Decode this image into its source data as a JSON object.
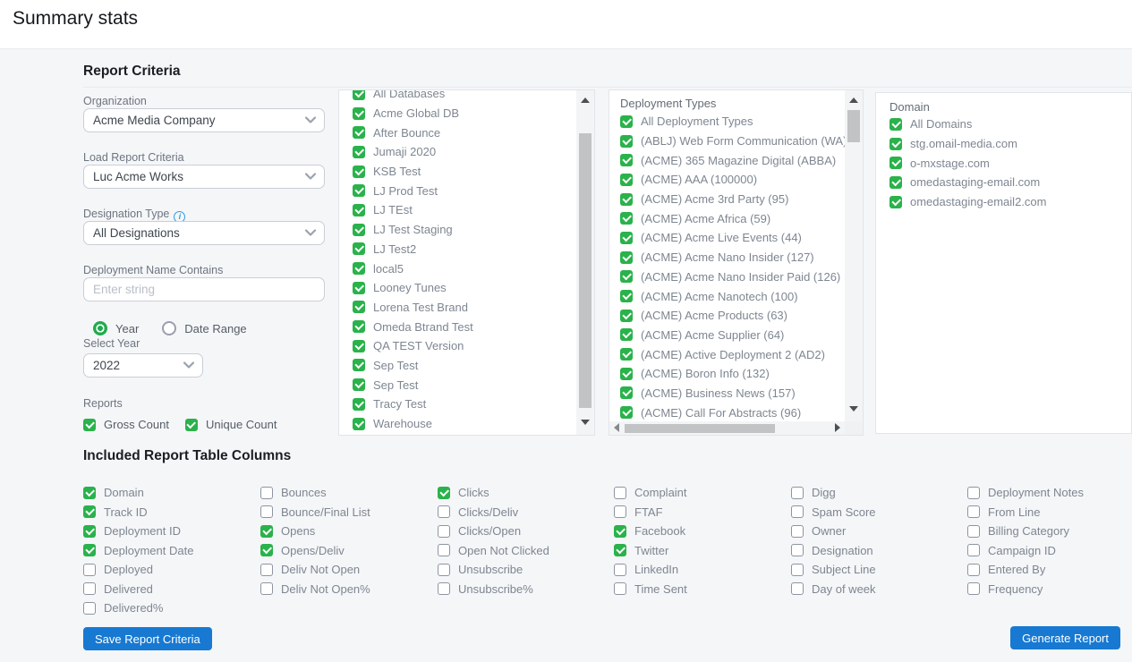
{
  "page_title": "Summary stats",
  "report_criteria": {
    "heading": "Report Criteria",
    "fields": {
      "organization": {
        "label": "Organization",
        "value": "Acme Media Company"
      },
      "load_report_criteria": {
        "label": "Load Report Criteria",
        "value": "Luc Acme Works"
      },
      "designation_type": {
        "label": "Designation Type",
        "value": "All Designations",
        "info_icon": "i"
      },
      "deployment_name_contains": {
        "label": "Deployment Name Contains",
        "placeholder": "Enter string"
      },
      "date_mode": {
        "options": [
          {
            "label": "Year",
            "selected": true
          },
          {
            "label": "Date Range",
            "selected": false
          }
        ]
      },
      "select_year": {
        "label": "Select Year",
        "value": "2022"
      },
      "reports": {
        "label": "Reports",
        "options": [
          {
            "label": "Gross Count",
            "checked": true
          },
          {
            "label": "Unique Count",
            "checked": true
          }
        ]
      }
    }
  },
  "databases": {
    "items": [
      {
        "label": "All Databases",
        "checked": true
      },
      {
        "label": "Acme Global DB",
        "checked": true
      },
      {
        "label": "After Bounce",
        "checked": true
      },
      {
        "label": "Jumaji 2020",
        "checked": true
      },
      {
        "label": "KSB Test",
        "checked": true
      },
      {
        "label": "LJ Prod Test",
        "checked": true
      },
      {
        "label": "LJ TEst",
        "checked": true
      },
      {
        "label": "LJ Test Staging",
        "checked": true
      },
      {
        "label": "LJ Test2",
        "checked": true
      },
      {
        "label": "local5",
        "checked": true
      },
      {
        "label": "Looney Tunes",
        "checked": true
      },
      {
        "label": "Lorena Test Brand",
        "checked": true
      },
      {
        "label": "Omeda Btrand Test",
        "checked": true
      },
      {
        "label": "QA TEST Version",
        "checked": true
      },
      {
        "label": "Sep Test",
        "checked": true
      },
      {
        "label": "Sep Test",
        "checked": true
      },
      {
        "label": "Tracy Test",
        "checked": true
      },
      {
        "label": "Warehouse",
        "checked": true
      }
    ]
  },
  "deployment_types": {
    "label": "Deployment Types",
    "items": [
      {
        "label": "All Deployment Types",
        "checked": true
      },
      {
        "label": "(ABLJ) Web Form Communication (WA)",
        "checked": true
      },
      {
        "label": "(ACME) 365 Magazine Digital (ABBA)",
        "checked": true
      },
      {
        "label": "(ACME) AAA (100000)",
        "checked": true
      },
      {
        "label": "(ACME) Acme 3rd Party (95)",
        "checked": true
      },
      {
        "label": "(ACME) Acme Africa (59)",
        "checked": true
      },
      {
        "label": "(ACME) Acme Live Events (44)",
        "checked": true
      },
      {
        "label": "(ACME) Acme Nano Insider (127)",
        "checked": true
      },
      {
        "label": "(ACME) Acme Nano Insider Paid (126)",
        "checked": true
      },
      {
        "label": "(ACME) Acme Nanotech (100)",
        "checked": true
      },
      {
        "label": "(ACME) Acme Products (63)",
        "checked": true
      },
      {
        "label": "(ACME) Acme Supplier (64)",
        "checked": true
      },
      {
        "label": "(ACME) Active Deployment 2 (AD2)",
        "checked": true
      },
      {
        "label": "(ACME) Boron Info (132)",
        "checked": true
      },
      {
        "label": "(ACME) Business News (157)",
        "checked": true
      },
      {
        "label": "(ACME) Call For Abstracts (96)",
        "checked": true
      }
    ]
  },
  "domains": {
    "label": "Domain",
    "items": [
      {
        "label": "All Domains",
        "checked": true
      },
      {
        "label": "stg.omail-media.com",
        "checked": true
      },
      {
        "label": "o-mxstage.com",
        "checked": true
      },
      {
        "label": "omedastaging-email.com",
        "checked": true
      },
      {
        "label": "omedastaging-email2.com",
        "checked": true
      }
    ]
  },
  "included_columns": {
    "heading": "Included Report Table Columns",
    "columns": [
      [
        {
          "label": "Domain",
          "checked": true
        },
        {
          "label": "Track ID",
          "checked": true
        },
        {
          "label": "Deployment ID",
          "checked": true
        },
        {
          "label": "Deployment Date",
          "checked": true
        },
        {
          "label": "Deployed",
          "checked": false
        },
        {
          "label": "Delivered",
          "checked": false
        },
        {
          "label": "Delivered%",
          "checked": false
        }
      ],
      [
        {
          "label": "Bounces",
          "checked": false
        },
        {
          "label": "Bounce/Final List",
          "checked": false
        },
        {
          "label": "Opens",
          "checked": true
        },
        {
          "label": "Opens/Deliv",
          "checked": true
        },
        {
          "label": "Deliv Not Open",
          "checked": false
        },
        {
          "label": "Deliv Not Open%",
          "checked": false
        }
      ],
      [
        {
          "label": "Clicks",
          "checked": true
        },
        {
          "label": "Clicks/Deliv",
          "checked": false
        },
        {
          "label": "Clicks/Open",
          "checked": false
        },
        {
          "label": "Open Not Clicked",
          "checked": false
        },
        {
          "label": "Unsubscribe",
          "checked": false
        },
        {
          "label": "Unsubscribe%",
          "checked": false
        }
      ],
      [
        {
          "label": "Complaint",
          "checked": false
        },
        {
          "label": "FTAF",
          "checked": false
        },
        {
          "label": "Facebook",
          "checked": true
        },
        {
          "label": "Twitter",
          "checked": true
        },
        {
          "label": "LinkedIn",
          "checked": false
        },
        {
          "label": "Time Sent",
          "checked": false
        }
      ],
      [
        {
          "label": "Digg",
          "checked": false
        },
        {
          "label": "Spam Score",
          "checked": false
        },
        {
          "label": "Owner",
          "checked": false
        },
        {
          "label": "Designation",
          "checked": false
        },
        {
          "label": "Subject Line",
          "checked": false
        },
        {
          "label": "Day of week",
          "checked": false
        }
      ],
      [
        {
          "label": "Deployment Notes",
          "checked": false
        },
        {
          "label": "From Line",
          "checked": false
        },
        {
          "label": "Billing Category",
          "checked": false
        },
        {
          "label": "Campaign ID",
          "checked": false
        },
        {
          "label": "Entered By",
          "checked": false
        },
        {
          "label": "Frequency",
          "checked": false
        }
      ]
    ]
  },
  "buttons": {
    "save": "Save Report Criteria",
    "generate": "Generate Report"
  },
  "colors": {
    "accent_green": "#2ab24b",
    "accent_blue": "#1779d2",
    "info_blue": "#2e9be0",
    "page_background": "#f5f6f8"
  }
}
